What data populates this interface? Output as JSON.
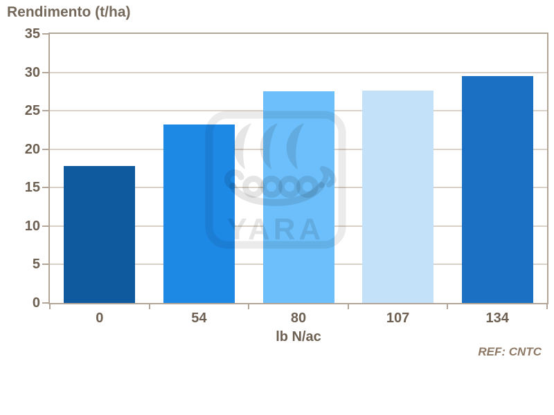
{
  "chart_data": {
    "type": "bar",
    "title": "Rendimento (t/ha)",
    "categories": [
      "0",
      "54",
      "80",
      "107",
      "134"
    ],
    "values": [
      17.8,
      23.2,
      27.5,
      27.6,
      29.5
    ],
    "xlabel": "lb N/ac",
    "ylabel": "Rendimento (t/ha)",
    "ylim": [
      0,
      35
    ],
    "ytick_step": 5,
    "grid": true,
    "legend": false,
    "bar_colors": [
      "#0f5a9e",
      "#1e88e5",
      "#6cbffa",
      "#c4e1fa",
      "#1b70c4"
    ],
    "annotation": "REF: CNTC",
    "watermark_text": "YARA"
  },
  "colors": {
    "background": "#ffffff",
    "axis_line": "#b2a496",
    "gridline": "#d9d1c7",
    "tick_label": "#6d6052",
    "title_text": "#75695c",
    "ref_text": "#8d7965",
    "watermark_frame": "rgba(0,0,0,0.08)",
    "watermark_ship": "rgba(0,0,0,0.10)"
  }
}
